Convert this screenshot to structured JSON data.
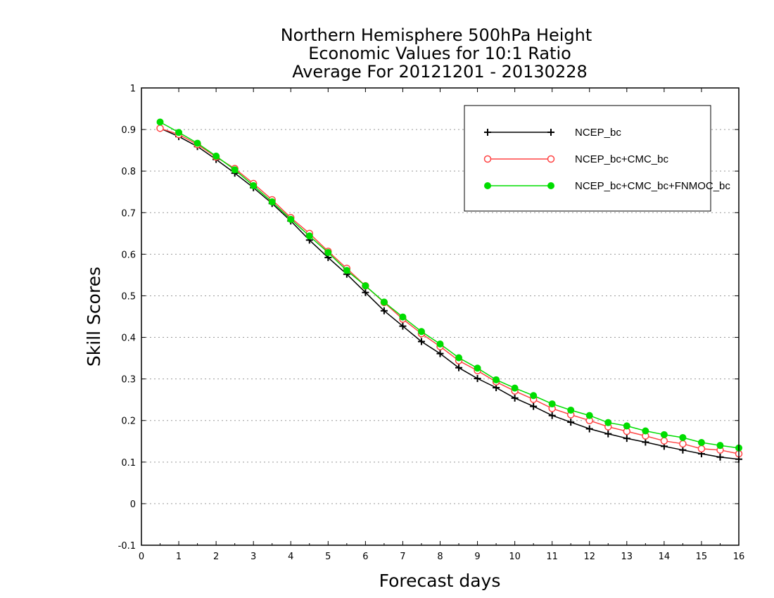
{
  "chart_data": {
    "type": "line",
    "title": [
      "Northern Hemisphere 500hPa Height",
      "Economic Values for 10:1 Ratio",
      "Average For 20121201 - 20130228"
    ],
    "xlabel": "Forecast days",
    "ylabel": "Skill Scores",
    "xlim": [
      0,
      16
    ],
    "ylim": [
      -0.1,
      1
    ],
    "x_ticks": [
      "0",
      "1",
      "2",
      "3",
      "4",
      "5",
      "6",
      "7",
      "8",
      "9",
      "10",
      "11",
      "12",
      "13",
      "14",
      "15",
      "16"
    ],
    "y_ticks": [
      "-0.1",
      "0",
      "0.1",
      "0.2",
      "0.3",
      "0.4",
      "0.5",
      "0.6",
      "0.7",
      "0.8",
      "0.9",
      "1"
    ],
    "y_tick_values": [
      -0.1,
      0,
      0.1,
      0.2,
      0.3,
      0.4,
      0.5,
      0.6,
      0.7,
      0.8,
      0.9,
      1
    ],
    "grid": "horizontal dotted",
    "legend_position": "top-right",
    "x": [
      0.5,
      1,
      1.5,
      2,
      2.5,
      3,
      3.5,
      4,
      4.5,
      5,
      5.5,
      6,
      6.5,
      7,
      7.5,
      8,
      8.5,
      9,
      9.5,
      10,
      10.5,
      11,
      11.5,
      12,
      12.5,
      13,
      13.5,
      14,
      14.5,
      15,
      15.5,
      16
    ],
    "series": [
      {
        "name": "NCEP_bc",
        "color": "#000000",
        "marker": "plus",
        "values": [
          0.903,
          0.883,
          0.859,
          0.828,
          0.795,
          0.76,
          0.722,
          0.68,
          0.634,
          0.592,
          0.552,
          0.508,
          0.464,
          0.427,
          0.39,
          0.361,
          0.327,
          0.301,
          0.279,
          0.254,
          0.234,
          0.212,
          0.196,
          0.18,
          0.168,
          0.157,
          0.148,
          0.138,
          0.129,
          0.12,
          0.112,
          0.107
        ]
      },
      {
        "name": "NCEP_bc+CMC_bc",
        "color": "#ff4444",
        "marker": "open-circle",
        "values": [
          0.903,
          0.888,
          0.864,
          0.834,
          0.806,
          0.77,
          0.731,
          0.688,
          0.65,
          0.607,
          0.566,
          0.524,
          0.484,
          0.444,
          0.409,
          0.378,
          0.344,
          0.32,
          0.293,
          0.271,
          0.251,
          0.229,
          0.214,
          0.2,
          0.185,
          0.174,
          0.163,
          0.151,
          0.144,
          0.132,
          0.129,
          0.12
        ]
      },
      {
        "name": "NCEP_bc+CMC_bc+FNMOC_bc",
        "color": "#00dd00",
        "marker": "filled-circle",
        "values": [
          0.918,
          0.893,
          0.867,
          0.836,
          0.803,
          0.765,
          0.726,
          0.684,
          0.644,
          0.604,
          0.561,
          0.524,
          0.485,
          0.449,
          0.414,
          0.384,
          0.351,
          0.326,
          0.298,
          0.278,
          0.26,
          0.24,
          0.225,
          0.212,
          0.195,
          0.187,
          0.175,
          0.166,
          0.159,
          0.147,
          0.14,
          0.134
        ]
      }
    ]
  }
}
